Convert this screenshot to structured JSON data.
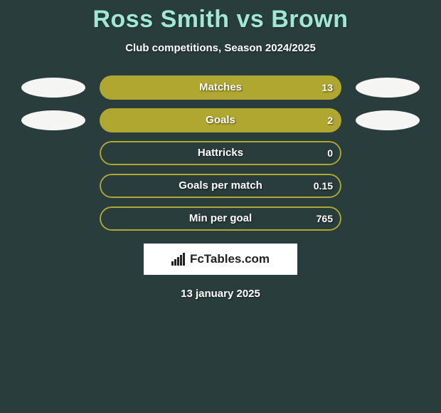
{
  "background_color": "#2a3d3d",
  "title": {
    "text": "Ross Smith vs Brown",
    "color": "#9fe8d4",
    "fontsize": 34
  },
  "subtitle": {
    "text": "Club competitions, Season 2024/2025",
    "color": "#ffffff",
    "fontsize": 15
  },
  "bars_style": {
    "fill_color": "#afa72f",
    "border_color": "#afa72f",
    "track_width": 340,
    "track_height": 34,
    "label_color": "#ffffff",
    "value_color": "#ffffff",
    "oval_color": "#f5f5f3"
  },
  "bars": [
    {
      "label": "Matches",
      "value": "13",
      "fill_pct": 100,
      "left_oval": true,
      "right_oval": true
    },
    {
      "label": "Goals",
      "value": "2",
      "fill_pct": 100,
      "left_oval": true,
      "right_oval": true
    },
    {
      "label": "Hattricks",
      "value": "0",
      "fill_pct": 0,
      "left_oval": false,
      "right_oval": false
    },
    {
      "label": "Goals per match",
      "value": "0.15",
      "fill_pct": 0,
      "left_oval": false,
      "right_oval": false
    },
    {
      "label": "Min per goal",
      "value": "765",
      "fill_pct": 0,
      "left_oval": false,
      "right_oval": false
    }
  ],
  "brand": {
    "text": "FcTables.com",
    "background": "#ffffff",
    "color": "#222222",
    "icon": "bar-chart-icon"
  },
  "date": {
    "text": "13 january 2025",
    "color": "#ffffff"
  }
}
